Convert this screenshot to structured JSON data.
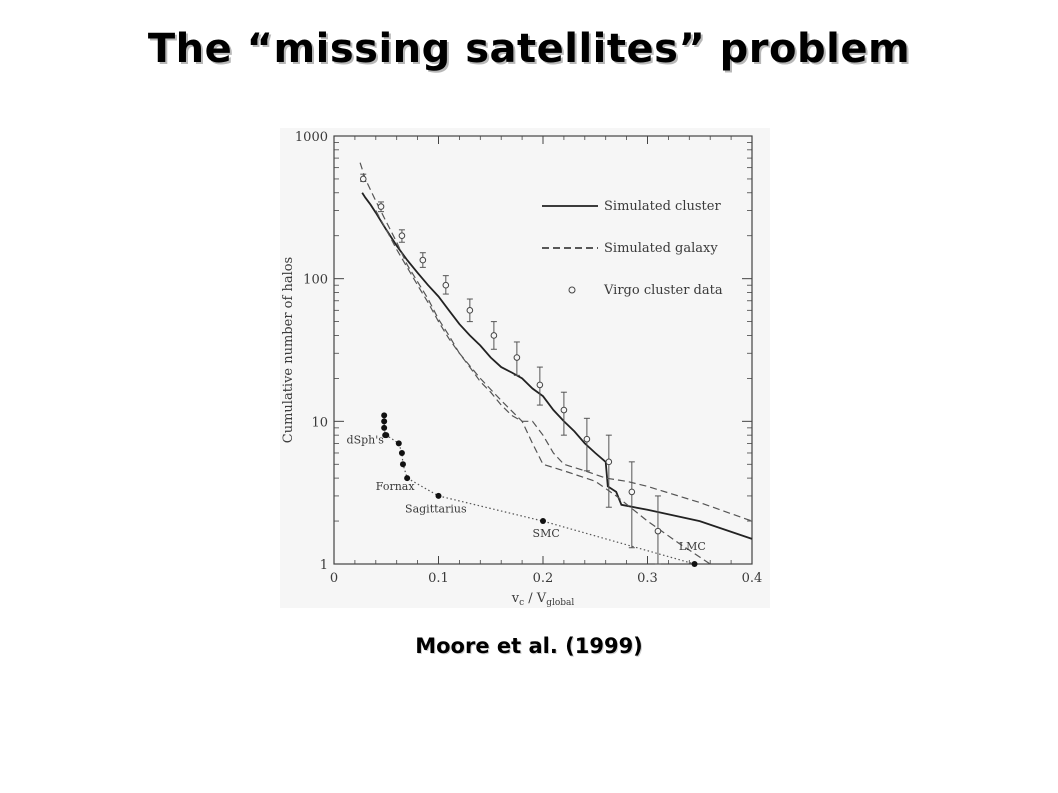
{
  "page": {
    "title": "The “missing satellites” problem",
    "caption": "Moore et al. (1999)"
  },
  "chart_data": {
    "type": "line",
    "xlabel_main": "v",
    "xlabel_sub1": "c",
    "xlabel_mid": " / V",
    "xlabel_sub2": "global",
    "ylabel": "Cumulative number of halos",
    "xlim": [
      0,
      0.4
    ],
    "ylim": [
      1,
      1000
    ],
    "yscale": "log",
    "xticks": [
      0,
      0.1,
      0.2,
      0.3,
      0.4
    ],
    "xtick_labels": [
      "0",
      "0.1",
      "0.2",
      "0.3",
      "0.4"
    ],
    "yticks": [
      1,
      10,
      100,
      1000
    ],
    "ytick_labels": [
      "1",
      "10",
      "100",
      "1000"
    ],
    "legend_position": "top-right",
    "series": [
      {
        "name": "Simulated cluster",
        "style": "solid",
        "x": [
          0.027,
          0.03,
          0.035,
          0.04,
          0.05,
          0.06,
          0.07,
          0.08,
          0.09,
          0.1,
          0.11,
          0.12,
          0.13,
          0.14,
          0.15,
          0.16,
          0.17,
          0.18,
          0.19,
          0.2,
          0.21,
          0.22,
          0.23,
          0.24,
          0.25,
          0.26,
          0.262,
          0.27,
          0.275,
          0.3,
          0.35,
          0.4
        ],
        "y": [
          400,
          370,
          330,
          290,
          220,
          170,
          135,
          110,
          90,
          75,
          60,
          48,
          40,
          34,
          28,
          24,
          22,
          20,
          17,
          15,
          12,
          10,
          8.5,
          7,
          6,
          5.2,
          3.5,
          3.2,
          2.6,
          2.4,
          2.0,
          1.5
        ]
      },
      {
        "name": "Simulated galaxy",
        "style": "dashed",
        "x": [
          0.025,
          0.03,
          0.04,
          0.05,
          0.06,
          0.07,
          0.08,
          0.09,
          0.1,
          0.11,
          0.12,
          0.13,
          0.14,
          0.15,
          0.16,
          0.17,
          0.18,
          0.19,
          0.2,
          0.21,
          0.22,
          0.24,
          0.26,
          0.28,
          0.3,
          0.35,
          0.4
        ],
        "y": [
          650,
          500,
          350,
          250,
          180,
          125,
          95,
          72,
          52,
          40,
          30,
          24,
          19,
          16,
          13,
          11,
          10,
          10,
          8,
          6,
          5,
          4.5,
          4,
          3.8,
          3.5,
          2.7,
          2.0
        ]
      },
      {
        "name": "Simulated galaxy",
        "style": "dashed",
        "x": [
          0.04,
          0.05,
          0.06,
          0.07,
          0.08,
          0.09,
          0.1,
          0.11,
          0.12,
          0.14,
          0.16,
          0.18,
          0.19,
          0.2,
          0.22,
          0.25,
          0.27,
          0.3,
          0.33,
          0.36
        ],
        "y": [
          300,
          220,
          160,
          120,
          90,
          68,
          50,
          38,
          30,
          20,
          14,
          10,
          7,
          5,
          4.5,
          3.8,
          3,
          2,
          1.4,
          1.0
        ]
      },
      {
        "name": "dSph's",
        "style": "dotted",
        "markers": true,
        "x": [
          0.048,
          0.048,
          0.048,
          0.049,
          0.05,
          0.062,
          0.065,
          0.066,
          0.07,
          0.1,
          0.2,
          0.345
        ],
        "y": [
          11,
          10,
          9,
          8,
          8,
          7,
          6,
          5,
          4,
          3,
          2,
          1
        ]
      }
    ],
    "virgo_points": [
      {
        "x": 0.028,
        "y": 500,
        "err": [
          480,
          540
        ]
      },
      {
        "x": 0.045,
        "y": 320,
        "err": [
          295,
          345
        ]
      },
      {
        "x": 0.065,
        "y": 200,
        "err": [
          180,
          220
        ]
      },
      {
        "x": 0.085,
        "y": 135,
        "err": [
          120,
          152
        ]
      },
      {
        "x": 0.107,
        "y": 90,
        "err": [
          78,
          105
        ]
      },
      {
        "x": 0.13,
        "y": 60,
        "err": [
          50,
          72
        ]
      },
      {
        "x": 0.153,
        "y": 40,
        "err": [
          32,
          50
        ]
      },
      {
        "x": 0.175,
        "y": 28,
        "err": [
          21,
          36
        ]
      },
      {
        "x": 0.197,
        "y": 18,
        "err": [
          13,
          24
        ]
      },
      {
        "x": 0.22,
        "y": 12,
        "err": [
          8,
          16
        ]
      },
      {
        "x": 0.242,
        "y": 7.5,
        "err": [
          4.5,
          10.5
        ]
      },
      {
        "x": 0.263,
        "y": 5.2,
        "err": [
          2.5,
          8
        ]
      },
      {
        "x": 0.285,
        "y": 3.2,
        "err": [
          1.3,
          5.2
        ]
      },
      {
        "x": 0.31,
        "y": 1.7,
        "err": [
          1,
          3
        ]
      }
    ],
    "legend": [
      {
        "label": "Simulated cluster",
        "style": "solid"
      },
      {
        "label": "Simulated galaxy",
        "style": "dashed"
      },
      {
        "label": "Virgo cluster data",
        "style": "circle"
      }
    ],
    "annotations": [
      {
        "text": "dSph's",
        "x": 0.012,
        "y": 7.0
      },
      {
        "text": "Fornax",
        "x": 0.04,
        "y": 3.3
      },
      {
        "text": "Sagittarius",
        "x": 0.068,
        "y": 2.3
      },
      {
        "text": "SMC",
        "x": 0.19,
        "y": 1.55
      },
      {
        "text": "LMC",
        "x": 0.33,
        "y": 1.25
      }
    ]
  }
}
